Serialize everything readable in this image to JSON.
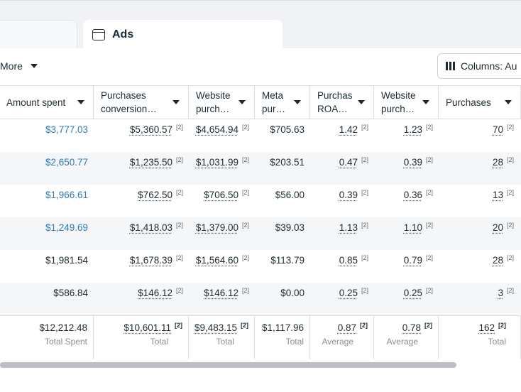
{
  "tabs": {
    "ads_label": "Ads"
  },
  "toolbar": {
    "more_label": "More",
    "columns_label": "Columns: Au"
  },
  "headers": [
    "Amount spent",
    "Purchases conversion…",
    "Website purch…",
    "Meta pur…",
    "Purchas ROA…",
    "Website purch…",
    "Purchases"
  ],
  "note_marker": "[2]",
  "rows": [
    [
      "$3,777.03",
      "$5,360.57",
      "$4,654.94",
      "$705.63",
      "1.42",
      "1.23",
      "70"
    ],
    [
      "$2,650.77",
      "$1,235.50",
      "$1,031.99",
      "$203.51",
      "0.47",
      "0.39",
      "28"
    ],
    [
      "$1,966.61",
      "$762.50",
      "$706.50",
      "$56.00",
      "0.39",
      "0.36",
      "13"
    ],
    [
      "$1,249.69",
      "$1,418.03",
      "$1,379.00",
      "$39.03",
      "1.13",
      "1.10",
      "20"
    ],
    [
      "$1,981.54",
      "$1,678.39",
      "$1,564.60",
      "$113.79",
      "0.85",
      "0.79",
      "28"
    ],
    [
      "$586.84",
      "$146.12",
      "$146.12",
      "$0.00",
      "0.25",
      "0.25",
      "3"
    ]
  ],
  "totals": {
    "values": [
      "$12,212.48",
      "$10,601.11",
      "$9,483.15",
      "$1,117.96",
      "0.87",
      "0.78",
      "162"
    ],
    "labels": [
      "Total Spent",
      "Total",
      "Total",
      "Total",
      "Average",
      "Average",
      "Total"
    ]
  },
  "colors": {
    "link": "#2f7bb5",
    "alt_row": "#f5f6f7"
  }
}
